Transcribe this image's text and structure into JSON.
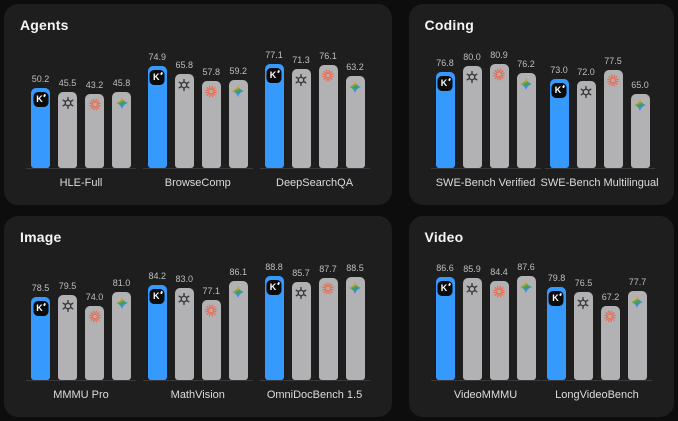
{
  "colors": {
    "page_bg": "#0D0D0E",
    "panel_bg": "#1E1E1F",
    "bar_highlight": "#3699FE",
    "bar_default": "#B2B2B4",
    "baseline": "#3A3A3C",
    "title_text": "#F5F5F5",
    "value_text": "#BFBFC1",
    "category_text": "#DCDCDD",
    "openai_glyph": "#39393B",
    "claude_glyph": "#F0684B",
    "kimi_badge_bg": "#0B0B0C",
    "kimi_badge_text": "#FFFFFF",
    "gemini_gradient": [
      "#FF4641",
      "#F59B2D",
      "#33A852",
      "#4285F4",
      "#8A5CF5"
    ]
  },
  "chart_data": [
    {
      "type": "bar",
      "title": "Agents",
      "ylim": [
        0,
        100
      ],
      "value_decimals": 1,
      "categories": [
        "HLE-Full",
        "BrowseComp",
        "DeepSearchQA"
      ],
      "series": [
        {
          "icon": "kimi-k-logo",
          "highlight": true,
          "values": [
            50.2,
            74.9,
            77.1
          ]
        },
        {
          "icon": "openai-logo",
          "highlight": false,
          "values": [
            45.5,
            65.8,
            71.3
          ]
        },
        {
          "icon": "claude-starburst-logo",
          "highlight": false,
          "values": [
            43.2,
            57.8,
            76.1
          ]
        },
        {
          "icon": "gemini-sparkle-logo",
          "highlight": false,
          "values": [
            45.8,
            59.2,
            63.2
          ]
        }
      ]
    },
    {
      "type": "bar",
      "title": "Coding",
      "ylim": [
        0,
        100
      ],
      "value_decimals": 1,
      "categories": [
        "SWE-Bench Verified",
        "SWE-Bench Multilingual"
      ],
      "series": [
        {
          "icon": "kimi-k-logo",
          "highlight": true,
          "values": [
            76.8,
            73.0
          ]
        },
        {
          "icon": "openai-logo",
          "highlight": false,
          "values": [
            80.0,
            72.0
          ]
        },
        {
          "icon": "claude-starburst-logo",
          "highlight": false,
          "values": [
            80.9,
            77.5
          ]
        },
        {
          "icon": "gemini-sparkle-logo",
          "highlight": false,
          "values": [
            76.2,
            65.0
          ]
        }
      ]
    },
    {
      "type": "bar",
      "title": "Image",
      "ylim": [
        0,
        100
      ],
      "value_decimals": 1,
      "categories": [
        "MMMU Pro",
        "MathVision",
        "OmniDocBench 1.5"
      ],
      "series": [
        {
          "icon": "kimi-k-logo",
          "highlight": true,
          "values": [
            78.5,
            84.2,
            88.8
          ]
        },
        {
          "icon": "openai-logo",
          "highlight": false,
          "values": [
            79.5,
            83.0,
            85.7
          ]
        },
        {
          "icon": "claude-starburst-logo",
          "highlight": false,
          "values": [
            74.0,
            77.1,
            87.7
          ]
        },
        {
          "icon": "gemini-sparkle-logo",
          "highlight": false,
          "values": [
            81.0,
            86.1,
            88.5
          ]
        }
      ]
    },
    {
      "type": "bar",
      "title": "Video",
      "ylim": [
        0,
        100
      ],
      "value_decimals": 1,
      "categories": [
        "VideoMMMU",
        "LongVideoBench"
      ],
      "series": [
        {
          "icon": "kimi-k-logo",
          "highlight": true,
          "values": [
            86.6,
            79.8
          ]
        },
        {
          "icon": "openai-logo",
          "highlight": false,
          "values": [
            85.9,
            76.5
          ]
        },
        {
          "icon": "claude-starburst-logo",
          "highlight": false,
          "values": [
            84.4,
            67.2
          ]
        },
        {
          "icon": "gemini-sparkle-logo",
          "highlight": false,
          "values": [
            87.6,
            77.7
          ]
        }
      ]
    }
  ]
}
